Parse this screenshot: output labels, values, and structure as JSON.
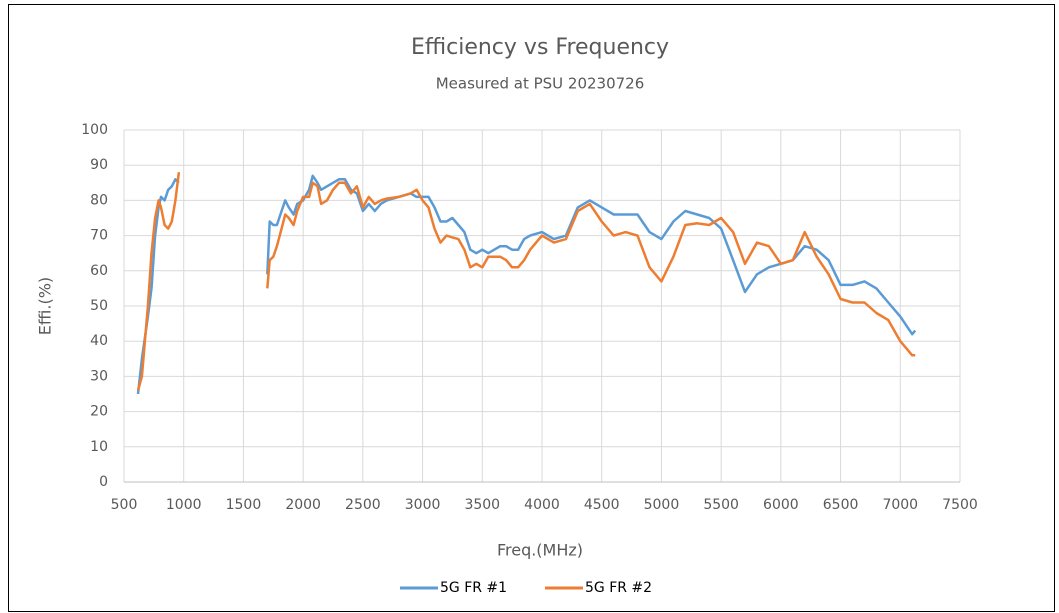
{
  "chart_data": {
    "type": "line",
    "title": "Efficiency vs Frequency",
    "subtitle": "Measured at PSU 20230726",
    "x_label": "Freq.(MHz)",
    "y_label": "Effi.(%)",
    "x": [
      617,
      650,
      700,
      730,
      760,
      790,
      810,
      840,
      870,
      900,
      930,
      960,
      1300,
      1700,
      1720,
      1750,
      1780,
      1820,
      1850,
      1880,
      1920,
      1950,
      2000,
      2050,
      2080,
      2120,
      2150,
      2200,
      2250,
      2300,
      2350,
      2400,
      2450,
      2500,
      2550,
      2600,
      2650,
      2700,
      2800,
      2900,
      2950,
      3000,
      3050,
      3100,
      3150,
      3200,
      3250,
      3300,
      3350,
      3400,
      3450,
      3500,
      3550,
      3600,
      3650,
      3700,
      3750,
      3800,
      3850,
      3900,
      4000,
      4100,
      4200,
      4300,
      4400,
      4500,
      4600,
      4700,
      4800,
      4900,
      5000,
      5100,
      5200,
      5300,
      5400,
      5500,
      5600,
      5700,
      5800,
      5900,
      6000,
      6100,
      6200,
      6300,
      6400,
      6500,
      6600,
      6700,
      6800,
      6900,
      7000,
      7100,
      7125
    ],
    "series": [
      {
        "name": "5G FR #1",
        "color": "#5b9bd5",
        "values": [
          25,
          35,
          47,
          55,
          70,
          78,
          81,
          80,
          83,
          84,
          86,
          85,
          null,
          59,
          74,
          73,
          73,
          77,
          80,
          78,
          76,
          79,
          80,
          83,
          87,
          85,
          83,
          84,
          85,
          86,
          86,
          83,
          82,
          77,
          79,
          77,
          79,
          80,
          81,
          82,
          81,
          81,
          81,
          78,
          74,
          74,
          75,
          73,
          71,
          66,
          65,
          66,
          65,
          66,
          67,
          67,
          66,
          66,
          69,
          70,
          71,
          69,
          70,
          78,
          80,
          78,
          76,
          76,
          76,
          71,
          69,
          74,
          77,
          76,
          75,
          72,
          63,
          54,
          59,
          61,
          62,
          63,
          67,
          66,
          63,
          56,
          56,
          57,
          55,
          51,
          47,
          42,
          43
        ]
      },
      {
        "name": "5G FR #2",
        "color": "#ed7d31",
        "values": [
          26,
          30,
          50,
          65,
          75,
          80,
          78,
          73,
          72,
          74,
          80,
          88,
          null,
          55,
          63,
          64,
          67,
          72,
          76,
          75,
          73,
          77,
          81,
          81,
          85,
          84,
          79,
          80,
          83,
          85,
          85,
          82,
          84,
          78,
          81,
          79,
          80,
          80.5,
          81,
          82,
          83,
          80,
          78,
          72,
          68,
          70,
          69.5,
          69,
          66,
          61,
          62,
          61,
          64,
          64,
          64,
          63,
          61,
          61,
          63,
          66,
          70,
          68,
          69,
          77,
          79,
          74,
          70,
          71,
          70,
          61,
          57,
          64,
          73,
          73.5,
          73,
          75,
          71,
          62,
          68,
          67,
          62,
          63,
          71,
          64,
          59,
          52,
          51,
          51,
          48,
          46,
          40,
          36,
          36
        ]
      }
    ],
    "xlim": [
      500,
      7500
    ],
    "xticks": [
      500,
      1000,
      1500,
      2000,
      2500,
      3000,
      3500,
      4000,
      4500,
      5000,
      5500,
      6000,
      6500,
      7000,
      7500
    ],
    "ylim": [
      0,
      100
    ],
    "yticks": [
      0,
      10,
      20,
      30,
      40,
      50,
      60,
      70,
      80,
      90,
      100
    ],
    "grid": true,
    "legend": "bottom"
  }
}
